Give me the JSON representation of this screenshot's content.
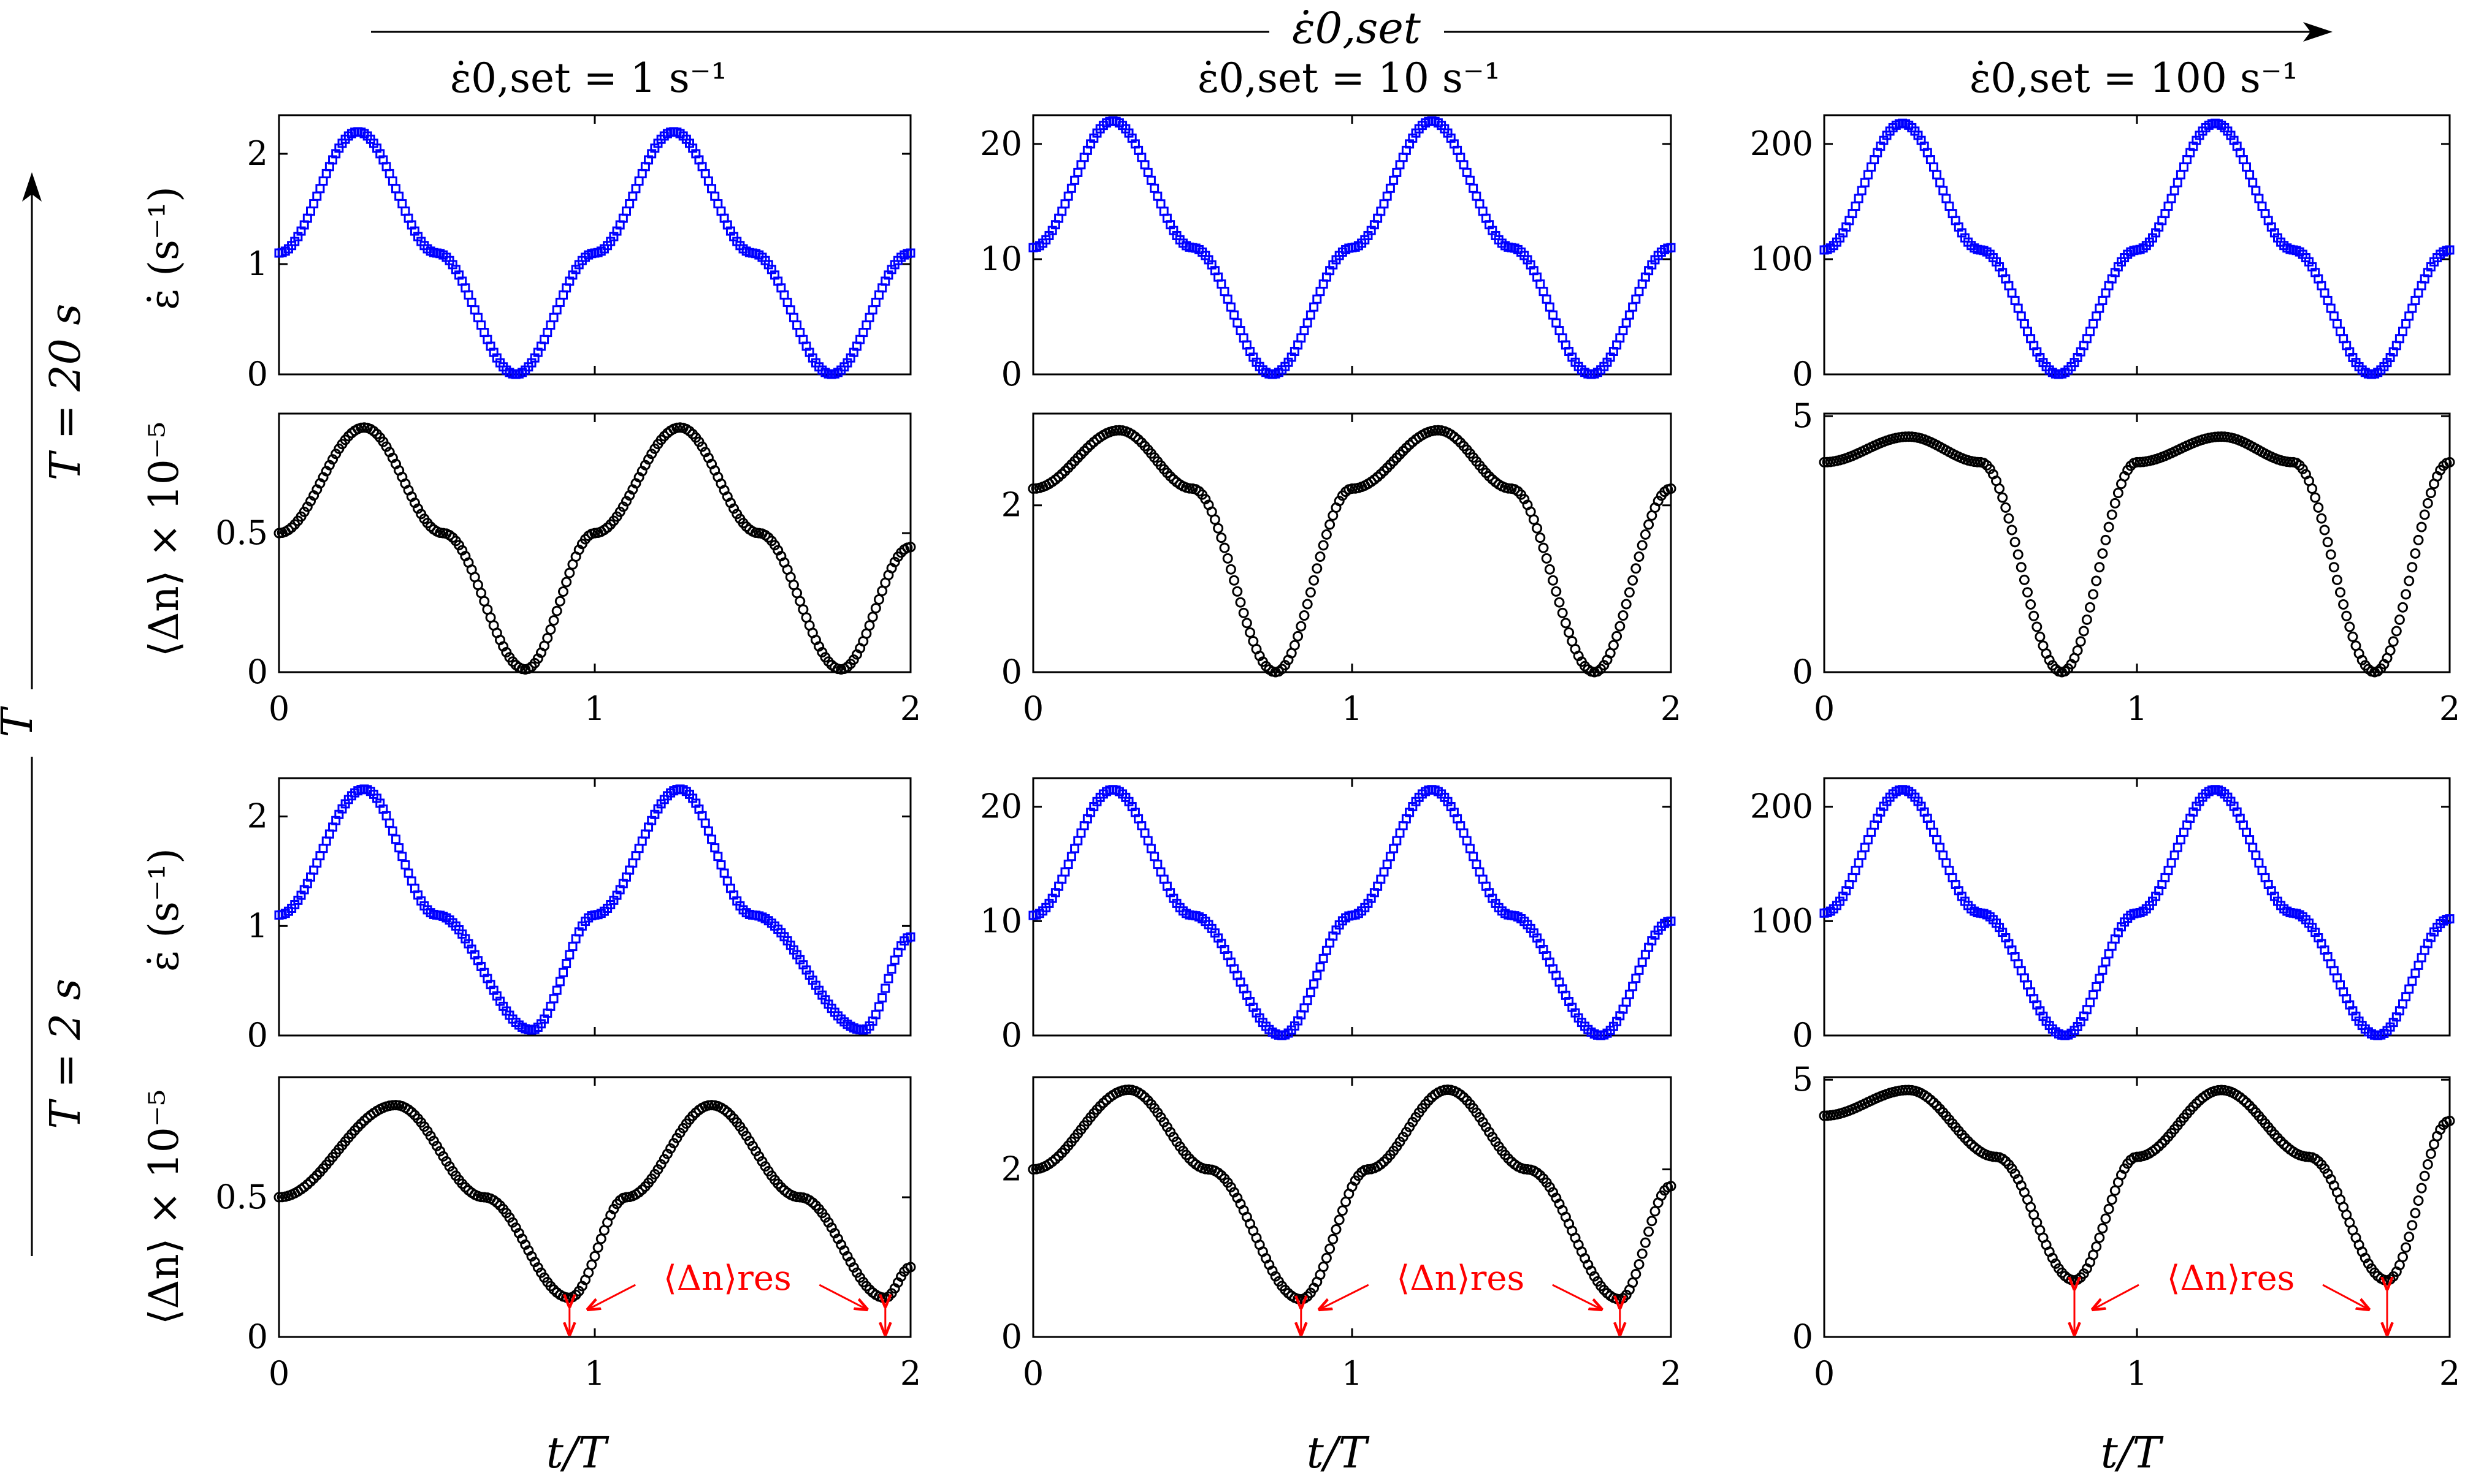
{
  "figure": {
    "top_arrow_label": "ε̇0,set",
    "side_arrow_label": "T",
    "column_titles": [
      "ε̇0,set = 1 s⁻¹",
      "ε̇0,set = 10 s⁻¹",
      "ε̇0,set = 100 s⁻¹"
    ],
    "row_titles": [
      "T = 20 s",
      "T = 2 s"
    ],
    "ylabel_rate": "ε̇ (s⁻¹)",
    "ylabel_dn": "⟨Δn⟩ × 10⁻⁵",
    "xlabel": "t/T",
    "annotation": "⟨Δn⟩res"
  },
  "colors": {
    "rate": "#0000ff",
    "dn": "#000000",
    "annotation": "#ff0000"
  },
  "chart_data": [
    {
      "type": "scatter",
      "row": "T = 20 s",
      "column": "ε̇0,set = 1 s⁻¹",
      "quantity": "rate",
      "xlim": [
        0,
        2
      ],
      "ylim": [
        0,
        2.35
      ],
      "yticks": [
        0,
        1,
        2
      ],
      "x": [
        0,
        0.25,
        0.5,
        0.75,
        1.0,
        1.25,
        1.5,
        1.75,
        2.0
      ],
      "y": [
        1.1,
        2.2,
        1.1,
        0.0,
        1.1,
        2.2,
        1.1,
        0.0,
        1.1
      ]
    },
    {
      "type": "scatter",
      "row": "T = 20 s",
      "column": "ε̇0,set = 1 s⁻¹",
      "quantity": "dn",
      "xlim": [
        0,
        2
      ],
      "ylim": [
        0,
        0.93
      ],
      "yticks": [
        0,
        0.5
      ],
      "x": [
        0,
        0.27,
        0.52,
        0.78,
        1.0,
        1.27,
        1.52,
        1.78,
        2.0
      ],
      "y": [
        0.5,
        0.88,
        0.5,
        0.01,
        0.5,
        0.88,
        0.5,
        0.01,
        0.45
      ]
    },
    {
      "type": "scatter",
      "row": "T = 20 s",
      "column": "ε̇0,set = 10 s⁻¹",
      "quantity": "rate",
      "xlim": [
        0,
        2
      ],
      "ylim": [
        0,
        22.5
      ],
      "yticks": [
        0,
        10,
        20
      ],
      "x": [
        0,
        0.25,
        0.5,
        0.75,
        1.0,
        1.25,
        1.5,
        1.75,
        2.0
      ],
      "y": [
        11,
        22,
        11,
        0,
        11,
        22,
        11,
        0,
        11
      ]
    },
    {
      "type": "scatter",
      "row": "T = 20 s",
      "column": "ε̇0,set = 10 s⁻¹",
      "quantity": "dn",
      "xlim": [
        0,
        2
      ],
      "ylim": [
        0,
        3.1
      ],
      "yticks": [
        0,
        2
      ],
      "x": [
        0,
        0.27,
        0.5,
        0.76,
        1.0,
        1.27,
        1.5,
        1.76,
        2.0
      ],
      "y": [
        2.2,
        2.9,
        2.2,
        0.0,
        2.2,
        2.9,
        2.2,
        0.0,
        2.2
      ]
    },
    {
      "type": "scatter",
      "row": "T = 20 s",
      "column": "ε̇0,set = 100 s⁻¹",
      "quantity": "rate",
      "xlim": [
        0,
        2
      ],
      "ylim": [
        0,
        225
      ],
      "yticks": [
        0,
        100,
        200
      ],
      "x": [
        0,
        0.25,
        0.5,
        0.75,
        1.0,
        1.25,
        1.5,
        1.75,
        2.0
      ],
      "y": [
        108,
        218,
        108,
        0,
        108,
        218,
        108,
        0,
        108
      ]
    },
    {
      "type": "scatter",
      "row": "T = 20 s",
      "column": "ε̇0,set = 100 s⁻¹",
      "quantity": "dn",
      "xlim": [
        0,
        2
      ],
      "ylim": [
        0,
        5.05
      ],
      "yticks": [
        0,
        5
      ],
      "x": [
        0,
        0.27,
        0.5,
        0.76,
        1.0,
        1.27,
        1.5,
        1.76,
        2.0
      ],
      "y": [
        4.1,
        4.6,
        4.1,
        0.0,
        4.1,
        4.6,
        4.1,
        0.0,
        4.1
      ]
    },
    {
      "type": "scatter",
      "row": "T = 2 s",
      "column": "ε̇0,set = 1 s⁻¹",
      "quantity": "rate",
      "xlim": [
        0,
        2
      ],
      "ylim": [
        0,
        2.35
      ],
      "yticks": [
        0,
        1,
        2
      ],
      "x": [
        0,
        0.27,
        0.5,
        0.8,
        1.0,
        1.27,
        1.5,
        1.85,
        2.0
      ],
      "y": [
        1.1,
        2.25,
        1.1,
        0.05,
        1.1,
        2.25,
        1.1,
        0.05,
        0.9
      ]
    },
    {
      "type": "scatter",
      "row": "T = 2 s",
      "column": "ε̇0,set = 1 s⁻¹",
      "quantity": "dn",
      "xlim": [
        0,
        2
      ],
      "ylim": [
        0,
        0.93
      ],
      "yticks": [
        0,
        0.5
      ],
      "x": [
        0,
        0.37,
        0.65,
        0.92,
        1.1,
        1.37,
        1.65,
        1.92,
        2.0
      ],
      "y": [
        0.5,
        0.83,
        0.5,
        0.14,
        0.5,
        0.83,
        0.5,
        0.14,
        0.25
      ]
    },
    {
      "type": "scatter",
      "row": "T = 2 s",
      "column": "ε̇0,set = 10 s⁻¹",
      "quantity": "rate",
      "xlim": [
        0,
        2
      ],
      "ylim": [
        0,
        22.5
      ],
      "yticks": [
        0,
        10,
        20
      ],
      "x": [
        0,
        0.25,
        0.5,
        0.78,
        1.0,
        1.25,
        1.5,
        1.78,
        2.0
      ],
      "y": [
        10.5,
        21.5,
        10.5,
        0,
        10.5,
        21.5,
        10.5,
        0,
        10
      ]
    },
    {
      "type": "scatter",
      "row": "T = 2 s",
      "column": "ε̇0,set = 10 s⁻¹",
      "quantity": "dn",
      "xlim": [
        0,
        2
      ],
      "ylim": [
        0,
        3.1
      ],
      "yticks": [
        0,
        2
      ],
      "x": [
        0,
        0.3,
        0.55,
        0.84,
        1.05,
        1.3,
        1.55,
        1.84,
        2.0
      ],
      "y": [
        2.0,
        2.95,
        2.0,
        0.45,
        2.0,
        2.95,
        2.0,
        0.45,
        1.8
      ]
    },
    {
      "type": "scatter",
      "row": "T = 2 s",
      "column": "ε̇0,set = 100 s⁻¹",
      "quantity": "rate",
      "xlim": [
        0,
        2
      ],
      "ylim": [
        0,
        225
      ],
      "yticks": [
        0,
        100,
        200
      ],
      "x": [
        0,
        0.25,
        0.5,
        0.77,
        1.0,
        1.25,
        1.5,
        1.77,
        2.0
      ],
      "y": [
        107,
        215,
        107,
        0,
        107,
        215,
        107,
        0,
        102
      ]
    },
    {
      "type": "scatter",
      "row": "T = 2 s",
      "column": "ε̇0,set = 100 s⁻¹",
      "quantity": "dn",
      "xlim": [
        0,
        2
      ],
      "ylim": [
        0,
        5.05
      ],
      "yticks": [
        0,
        5
      ],
      "x": [
        0,
        0.27,
        0.55,
        0.8,
        1.0,
        1.27,
        1.55,
        1.8,
        2.0
      ],
      "y": [
        4.3,
        4.8,
        3.5,
        1.1,
        3.5,
        4.8,
        3.5,
        1.1,
        4.2
      ]
    }
  ]
}
